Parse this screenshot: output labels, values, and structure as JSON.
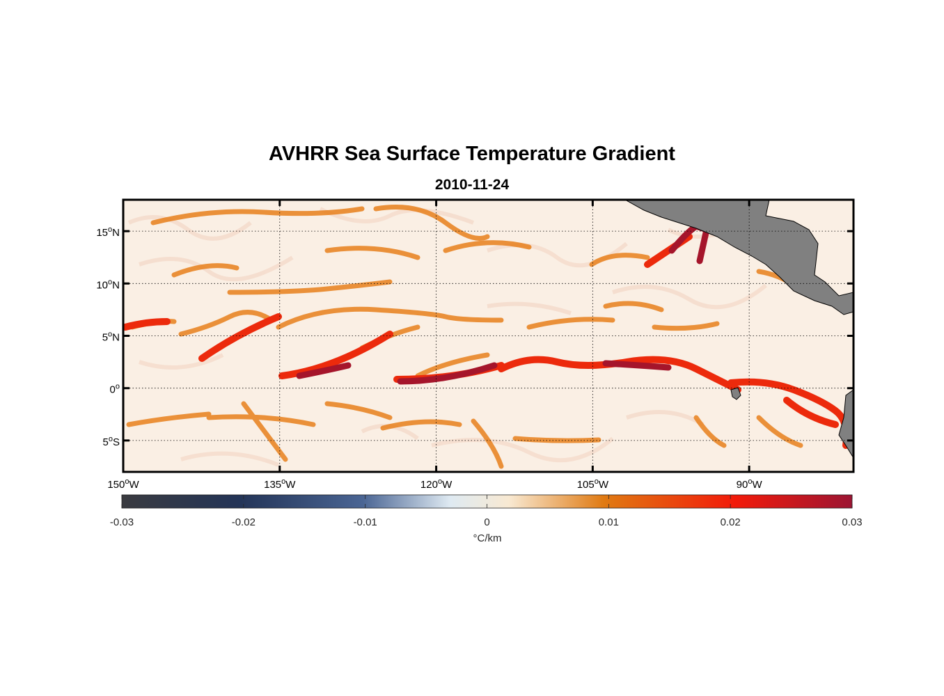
{
  "title": "AVHRR Sea Surface Temperature Gradient",
  "subtitle": "2010-11-24",
  "map": {
    "lon_range": [
      -150,
      -80
    ],
    "lat_range": [
      -8,
      18
    ],
    "grid": true,
    "land_color": "#808080",
    "lon_ticks": [
      {
        "value": -150,
        "num": "150",
        "hemi": "W"
      },
      {
        "value": -135,
        "num": "135",
        "hemi": "W"
      },
      {
        "value": -120,
        "num": "120",
        "hemi": "W"
      },
      {
        "value": -105,
        "num": "105",
        "hemi": "W"
      },
      {
        "value": -90,
        "num": "90",
        "hemi": "W"
      }
    ],
    "lat_ticks": [
      {
        "value": 15,
        "num": "15",
        "hemi": "N"
      },
      {
        "value": 10,
        "num": "10",
        "hemi": "N"
      },
      {
        "value": 5,
        "num": "5",
        "hemi": "N"
      },
      {
        "value": 0,
        "num": "0",
        "hemi": ""
      },
      {
        "value": -5,
        "num": "5",
        "hemi": "S"
      }
    ]
  },
  "colorbar": {
    "label": "°C/km",
    "range": [
      -0.03,
      0.03
    ],
    "ticks": [
      {
        "value": -0.03,
        "label": "-0.03"
      },
      {
        "value": -0.02,
        "label": "-0.02"
      },
      {
        "value": -0.01,
        "label": "-0.01"
      },
      {
        "value": 0,
        "label": "0"
      },
      {
        "value": 0.01,
        "label": "0.01"
      },
      {
        "value": 0.02,
        "label": "0.02"
      },
      {
        "value": 0.03,
        "label": "0.03"
      }
    ],
    "colors": [
      "#3a3b40",
      "#233457",
      "#4a6594",
      "#dfeaf2",
      "#f8e9d2",
      "#e07a12",
      "#f21a0a",
      "#9c1533"
    ]
  }
}
